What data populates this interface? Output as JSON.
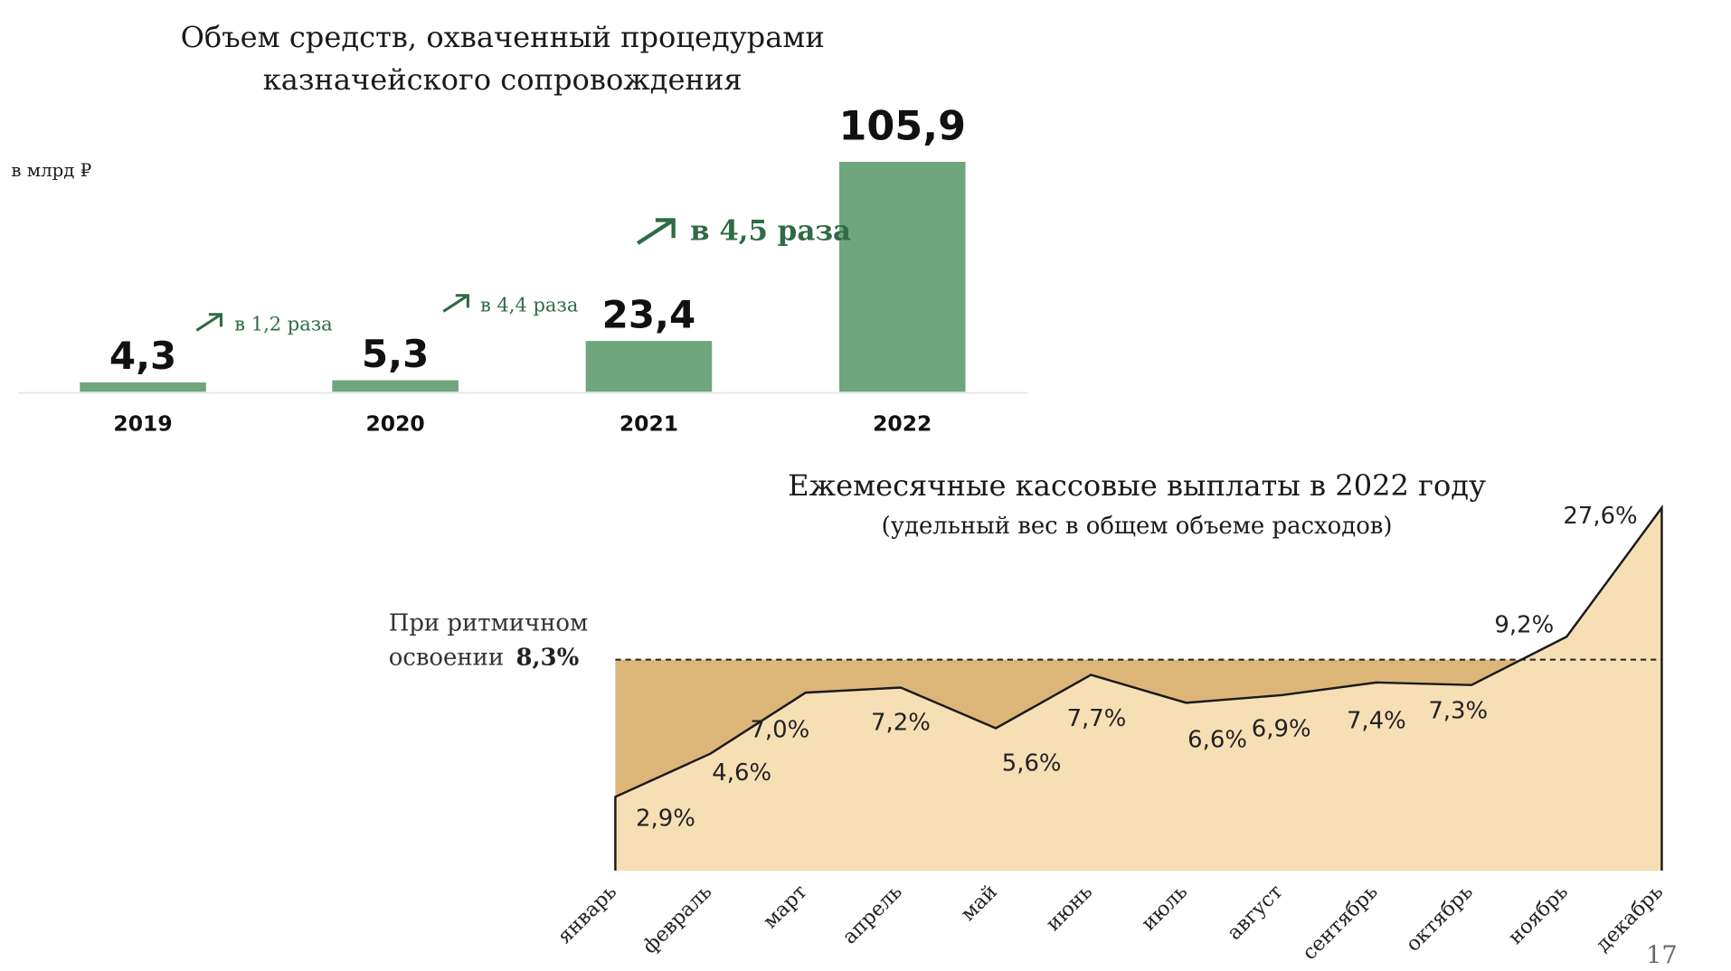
{
  "chart_data": [
    {
      "type": "bar",
      "title": "Объем средств, охваченный процедурами казначейского сопровождения",
      "title_lines": [
        "Объем средств, охваченный процедурами",
        "казначейского сопровождения"
      ],
      "unit_label": "в млрд ₽",
      "categories": [
        "2019",
        "2020",
        "2021",
        "2022"
      ],
      "values": [
        4.3,
        5.3,
        23.4,
        105.9
      ],
      "value_labels": [
        "4,3",
        "5,3",
        "23,4",
        "105,9"
      ],
      "growth_annotations": [
        "в 1,2 раза",
        "в 4,4 раза",
        "в 4,5 раза"
      ],
      "bar_color": "#6fa67c",
      "annotation_color": "#2f6b45",
      "grid": false
    },
    {
      "type": "area",
      "title": "Ежемесячные кассовые выплаты в 2022 году",
      "subtitle": "(удельный вес в общем объеме расходов)",
      "categories": [
        "январь",
        "февраль",
        "март",
        "апрель",
        "май",
        "июнь",
        "июль",
        "август",
        "сентябрь",
        "октябрь",
        "ноябрь",
        "декабрь"
      ],
      "values": [
        2.9,
        4.6,
        7.0,
        7.2,
        5.6,
        7.7,
        6.6,
        6.9,
        7.4,
        7.3,
        9.2,
        27.6
      ],
      "value_labels": [
        "2,9%",
        "4,6%",
        "7,0%",
        "7,2%",
        "5,6%",
        "7,7%",
        "6,6%",
        "6,9%",
        "7,4%",
        "7,3%",
        "9,2%",
        "27,6%"
      ],
      "reference_line": {
        "value": 8.3,
        "label_prefix_lines": [
          "При ритмичном",
          "освоении"
        ],
        "label_value": "8,3%",
        "style": "dashed"
      },
      "fill_color": "#f7dfb5",
      "gap_fill_color": "#dcb679",
      "line_color": "#1a1a1a",
      "grid": false
    }
  ],
  "page_number": "17"
}
